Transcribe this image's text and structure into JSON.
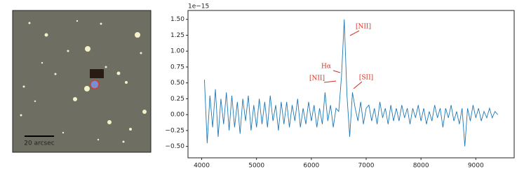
{
  "image": {
    "scale_label": "20 arcsec"
  },
  "chart_data": {
    "type": "line",
    "offset_label": "1e−15",
    "annotations": [
      "[NII]",
      "Hα",
      "[NII]",
      "[SII]"
    ],
    "x": [
      4050,
      4100,
      4150,
      4200,
      4250,
      4300,
      4350,
      4400,
      4450,
      4500,
      4550,
      4600,
      4650,
      4700,
      4750,
      4800,
      4850,
      4900,
      4950,
      5000,
      5050,
      5100,
      5150,
      5200,
      5250,
      5300,
      5350,
      5400,
      5450,
      5500,
      5550,
      5600,
      5650,
      5700,
      5750,
      5800,
      5850,
      5900,
      5950,
      6000,
      6050,
      6100,
      6150,
      6200,
      6250,
      6300,
      6350,
      6400,
      6450,
      6500,
      6550,
      6600,
      6650,
      6700,
      6750,
      6800,
      6850,
      6900,
      6950,
      7000,
      7050,
      7100,
      7150,
      7200,
      7250,
      7300,
      7350,
      7400,
      7450,
      7500,
      7550,
      7600,
      7650,
      7700,
      7750,
      7800,
      7850,
      7900,
      7950,
      8000,
      8050,
      8100,
      8150,
      8200,
      8250,
      8300,
      8350,
      8400,
      8450,
      8500,
      8550,
      8600,
      8650,
      8700,
      8750,
      8800,
      8850,
      8900,
      8950,
      9000,
      9050,
      9100,
      9150,
      9200,
      9250,
      9300,
      9350,
      9400
    ],
    "series": [
      {
        "color": "#1f77b4",
        "values": [
          0.55,
          -0.45,
          0.3,
          -0.2,
          0.4,
          -0.35,
          0.25,
          -0.15,
          0.35,
          -0.25,
          0.3,
          -0.2,
          0.2,
          -0.3,
          0.25,
          -0.1,
          0.3,
          -0.25,
          0.15,
          -0.2,
          0.25,
          -0.15,
          0.2,
          -0.2,
          0.3,
          -0.1,
          0.15,
          -0.25,
          0.2,
          -0.15,
          0.2,
          -0.2,
          0.15,
          -0.1,
          0.25,
          -0.2,
          0.1,
          -0.15,
          0.2,
          -0.1,
          0.15,
          -0.2,
          0.1,
          -0.15,
          0.35,
          -0.1,
          0.15,
          -0.2,
          0.1,
          0.05,
          0.6,
          1.5,
          0.3,
          -0.35,
          0.35,
          0.1,
          -0.1,
          0.2,
          -0.15,
          0.1,
          0.15,
          -0.1,
          0.1,
          -0.15,
          0.2,
          -0.05,
          0.1,
          -0.15,
          0.15,
          -0.1,
          0.1,
          -0.1,
          0.15,
          -0.05,
          0.1,
          -0.15,
          0.1,
          -0.05,
          0.15,
          -0.1,
          0.1,
          -0.15,
          0.05,
          -0.1,
          0.15,
          -0.05,
          0.1,
          -0.2,
          0.1,
          -0.05,
          0.15,
          -0.1,
          0.05,
          -0.15,
          0.1,
          -0.5,
          0.1,
          -0.1,
          0.15,
          -0.05,
          0.1,
          -0.1,
          0.05,
          -0.05,
          0.1,
          -0.05,
          0.05,
          0.0
        ]
      }
    ],
    "xlim": [
      3750,
      9700
    ],
    "ylim": [
      -0.68,
      1.64
    ],
    "xticks": [
      4000,
      5000,
      6000,
      7000,
      8000,
      9000
    ],
    "yticks": [
      {
        "value": -0.5,
        "label": "−0.50"
      },
      {
        "value": -0.25,
        "label": "−0.25"
      },
      {
        "value": 0,
        "label": "0.00"
      },
      {
        "value": 0.25,
        "label": "0.25"
      },
      {
        "value": 0.5,
        "label": "0.50"
      },
      {
        "value": 0.75,
        "label": "0.75"
      },
      {
        "value": 1,
        "label": "1.00"
      },
      {
        "value": 1.25,
        "label": "1.25"
      },
      {
        "value": 1.5,
        "label": "1.50"
      }
    ]
  }
}
